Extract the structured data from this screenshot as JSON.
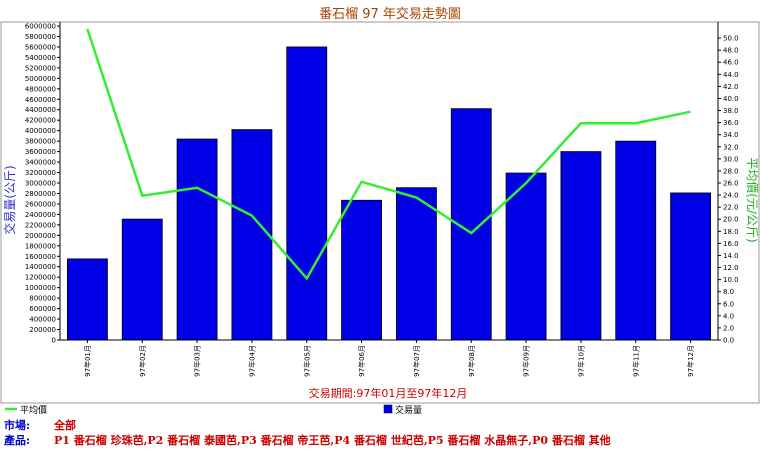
{
  "chart_data": {
    "type": "bar",
    "title": "番石榴 97 年交易走勢圖",
    "subtitle": "交易期間:97年01月至97年12月",
    "categories": [
      "97年01月",
      "97年02月",
      "97年03月",
      "97年04月",
      "97年05月",
      "97年06月",
      "97年07月",
      "97年08月",
      "97年09月",
      "97年10月",
      "97年11月",
      "97年12月"
    ],
    "series": [
      {
        "name": "交易量",
        "axis": "left",
        "kind": "bar",
        "color": "#0000e6",
        "values": [
          1550000,
          2310000,
          3840000,
          4020000,
          5600000,
          2670000,
          2910000,
          4420000,
          3190000,
          3600000,
          3800000,
          2810000
        ]
      },
      {
        "name": "平均價",
        "axis": "right",
        "kind": "line",
        "color": "#33ee33",
        "values": [
          51.5,
          23.9,
          25.2,
          20.6,
          10.2,
          26.2,
          23.6,
          17.7,
          26.0,
          35.9,
          35.9,
          37.8
        ]
      }
    ],
    "ylabel": "交易量(公斤)",
    "y2label": "平均價(元/公斤)",
    "ylim": [
      0,
      6000000
    ],
    "y2lim": [
      0,
      52
    ],
    "yticks": [
      "0",
      "200000",
      "400000",
      "600000",
      "800000",
      "1000000",
      "1200000",
      "1400000",
      "1600000",
      "1800000",
      "2000000",
      "2200000",
      "2400000",
      "2600000",
      "2800000",
      "3000000",
      "3200000",
      "3400000",
      "3600000",
      "3800000",
      "4000000",
      "4200000",
      "4400000",
      "4600000",
      "4800000",
      "5000000",
      "5200000",
      "5400000",
      "5600000",
      "5800000",
      "6000000"
    ],
    "y2ticks": [
      "0.0",
      "2.0",
      "4.0",
      "6.0",
      "8.0",
      "10.0",
      "12.0",
      "14.0",
      "16.0",
      "18.0",
      "20.0",
      "22.0",
      "24.0",
      "26.0",
      "28.0",
      "30.0",
      "32.0",
      "34.0",
      "36.0",
      "38.0",
      "40.0",
      "42.0",
      "44.0",
      "46.0",
      "48.0",
      "50.0"
    ],
    "grid": false,
    "legend": "bottom"
  },
  "info": {
    "market_label": "市場:",
    "market_value": "全部",
    "product_label": "產品:",
    "product_value": "P1 番石榴 珍珠芭,P2 番石榴 泰國芭,P3 番石榴 帝王芭,P4 番石榴 世紀芭,P5 番石榴 水晶無子,P0 番石榴 其他"
  },
  "colors": {
    "bar": "#0000e6",
    "line": "#33ee33",
    "title": "#aa4400",
    "subtitle": "#cc0000",
    "left_axis_label": "#3333cc",
    "right_axis_label": "#22aa22"
  }
}
